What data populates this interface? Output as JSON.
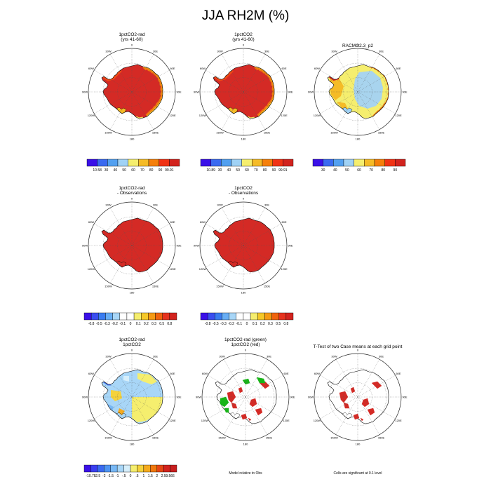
{
  "title": "JJA RH2M (%)",
  "colors": {
    "land_red": "#d42a25",
    "ocean_white": "#ffffff",
    "green": "#18b418"
  },
  "panels": [
    {
      "id": "p1",
      "title": [
        "1pctCO2-rad",
        "(yrs 41-60)"
      ],
      "fill": "red_orange"
    },
    {
      "id": "p2",
      "title": [
        "1pctCO2",
        "(yrs 41-60)"
      ],
      "fill": "red_orange"
    },
    {
      "id": "p3",
      "title": [
        "RACMO2.3_p2",
        ""
      ],
      "fill": "blue_yellow"
    },
    {
      "id": "p4",
      "title": [
        "1pctCO2-rad",
        "- Observations"
      ],
      "fill": "solid_red"
    },
    {
      "id": "p5",
      "title": [
        "1pctCO2",
        "- Observations"
      ],
      "fill": "solid_red"
    },
    {
      "id": "p6",
      "title": [
        "1pctCO2-rad",
        "1pctCO2"
      ],
      "fill": "diff"
    },
    {
      "id": "p7",
      "title": [
        "1pctCO2-rad (green)",
        "1pctCO2 (red)"
      ],
      "fill": "sig_two"
    },
    {
      "id": "p8",
      "title": [
        "T-Test of two Case means at each grid point",
        ""
      ],
      "fill": "sig_red"
    }
  ],
  "meridian_labels": [
    "0",
    "30E",
    "60E",
    "90E",
    "120E",
    "150E",
    "180",
    "150W",
    "120W",
    "90W",
    "60W",
    "30W"
  ],
  "colorbars": [
    {
      "id": "cb1",
      "colors": [
        "#3a10e8",
        "#3a6af0",
        "#52a0f0",
        "#a0d2f5",
        "#f5ee6e",
        "#f5bb26",
        "#f57f0a",
        "#f03214",
        "#d2231e"
      ],
      "labels": [
        "10.58",
        "30",
        "40",
        "50",
        "60",
        "70",
        "80",
        "90",
        "99.91"
      ]
    },
    {
      "id": "cb2",
      "colors": [
        "#3a10e8",
        "#3a6af0",
        "#52a0f0",
        "#a0d2f5",
        "#f5ee6e",
        "#f5bb26",
        "#f57f0a",
        "#f03214",
        "#d2231e"
      ],
      "labels": [
        "10.89",
        "30",
        "40",
        "50",
        "60",
        "70",
        "80",
        "90",
        "99.91"
      ]
    },
    {
      "id": "cb3",
      "colors": [
        "#3a10e8",
        "#3a6af0",
        "#52a0f0",
        "#a0d2f5",
        "#f5ee6e",
        "#f5bb26",
        "#f57f0a",
        "#f03214",
        "#d2231e"
      ],
      "labels": [
        "30",
        "40",
        "50",
        "60",
        "70",
        "80",
        "90"
      ]
    },
    {
      "id": "cb4",
      "colors": [
        "#3a10e8",
        "#3a4ef0",
        "#3a7cf0",
        "#68aef5",
        "#a8d6f7",
        "#ffffff",
        "#ffffff",
        "#f5ee6e",
        "#f5c828",
        "#f59a14",
        "#f0640e",
        "#e6321e",
        "#d2231e"
      ],
      "labels": [
        "-0.8",
        "-0.5",
        "-0.3",
        "-0.2",
        "-0.1",
        "0",
        "0.1",
        "0.2",
        "0.3",
        "0.5",
        "0.8"
      ]
    },
    {
      "id": "cb5",
      "colors": [
        "#3a10e8",
        "#3a4ef0",
        "#3a7cf0",
        "#68aef5",
        "#a8d6f7",
        "#ffffff",
        "#ffffff",
        "#f5ee6e",
        "#f5c828",
        "#f59a14",
        "#f0640e",
        "#e6321e",
        "#d2231e"
      ],
      "labels": [
        "-0.8",
        "-0.5",
        "-0.3",
        "-0.2",
        "-0.1",
        "0",
        "0.1",
        "0.2",
        "0.3",
        "0.5",
        "0.8"
      ]
    },
    {
      "id": "cb6",
      "colors": [
        "#3a10e8",
        "#3a3ef0",
        "#3a6af0",
        "#4e94f2",
        "#78b8f5",
        "#a8d6f7",
        "#d6eefa",
        "#f5ee6e",
        "#f5d23c",
        "#f5aa1e",
        "#f0780e",
        "#e64614",
        "#d2231e",
        "#c81e1e"
      ],
      "labels": [
        "-10.75",
        "-2.5",
        "-2",
        "-1.5",
        "-1",
        "-.5",
        "0",
        ".5",
        "1",
        "1.5",
        "2",
        "2.5",
        "9.566"
      ]
    }
  ],
  "notes": {
    "model_relative": "Model relative to Obs",
    "significance": "Cells are significant at 0.1 level"
  }
}
